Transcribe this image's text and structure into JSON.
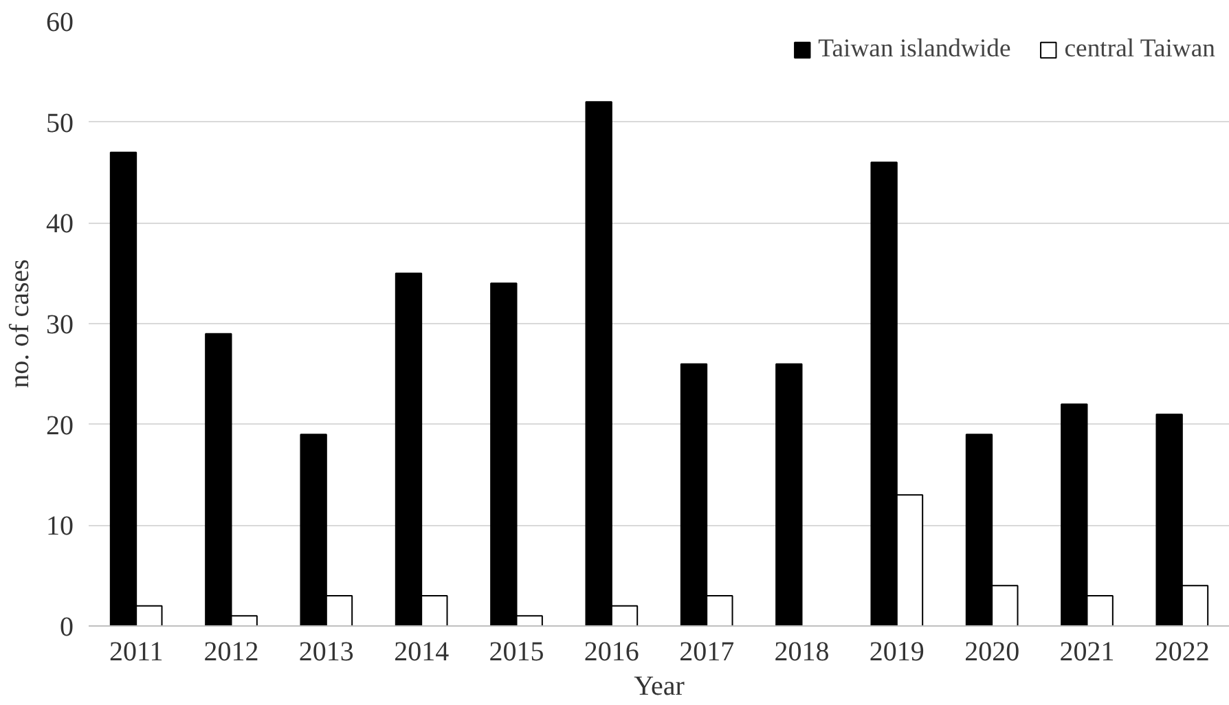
{
  "chart_data": {
    "type": "bar",
    "xlabel": "Year",
    "ylabel": "no. of cases",
    "categories": [
      "2011",
      "2012",
      "2013",
      "2014",
      "2015",
      "2016",
      "2017",
      "2018",
      "2019",
      "2020",
      "2021",
      "2022"
    ],
    "series": [
      {
        "name": "Taiwan islandwide",
        "color": "#000000",
        "values": [
          47,
          29,
          19,
          35,
          34,
          52,
          26,
          26,
          46,
          19,
          22,
          21
        ]
      },
      {
        "name": "central Taiwan",
        "color": "#ffffff",
        "values": [
          2,
          1,
          3,
          3,
          1,
          2,
          3,
          null,
          13,
          4,
          3,
          4
        ]
      }
    ],
    "ylim": [
      0,
      60
    ],
    "yticks": [
      0,
      10,
      20,
      30,
      40,
      50,
      60
    ],
    "grid": "y",
    "legend": "top right"
  }
}
